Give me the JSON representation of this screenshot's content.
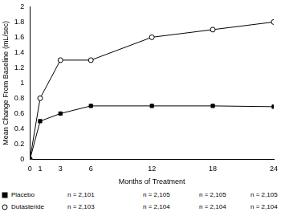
{
  "chart_data": {
    "type": "line",
    "x_label": "Months of Treatment",
    "y_label": "Mean Change From Baseline (mL/sec)",
    "x": [
      0,
      1,
      3,
      6,
      12,
      18,
      24
    ],
    "xlim": [
      0,
      24
    ],
    "xticks": [
      0,
      1,
      3,
      6,
      12,
      18,
      24
    ],
    "ylim": [
      0,
      2
    ],
    "yticks": [
      0,
      0.2,
      0.4,
      0.6,
      0.8,
      1,
      1.2,
      1.4,
      1.6,
      1.8,
      2
    ],
    "grid": false,
    "legend": "bottom left",
    "series": [
      {
        "name": "Placebo",
        "color": "#000000",
        "marker": "square",
        "values": [
          0,
          0.5,
          0.6,
          0.7,
          0.7,
          0.7,
          0.69
        ],
        "counts": [
          "n = 2,101",
          "n = 2,105",
          "n = 2,105",
          "n = 2,105"
        ]
      },
      {
        "name": "Dutasteride",
        "color": "#000000",
        "marker": "open circle",
        "values": [
          0,
          0.8,
          1.3,
          1.3,
          1.6,
          1.7,
          1.8
        ],
        "counts": [
          "n = 2,103",
          "n = 2,104",
          "n = 2,104",
          "n = 2,104"
        ]
      }
    ]
  }
}
